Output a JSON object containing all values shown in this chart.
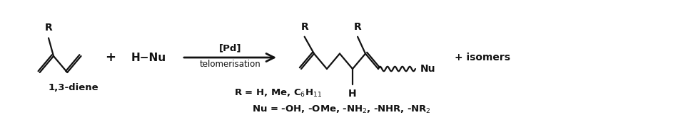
{
  "figsize": [
    9.57,
    1.69
  ],
  "dpi": 100,
  "bg_color": "#ffffff",
  "font_family": "DejaVu Sans",
  "line_color": "#111111",
  "line_width": 1.6,
  "font_size_main": 10,
  "font_size_label": 9.5,
  "font_size_sub": 7.5,
  "arrow_label_top": "[Pd]",
  "arrow_label_bottom": "telomerisation",
  "diene_label": "1,3-diene",
  "plus_label": "+",
  "isomers_label": "+ isomers",
  "hnu_label": "H−Nu"
}
